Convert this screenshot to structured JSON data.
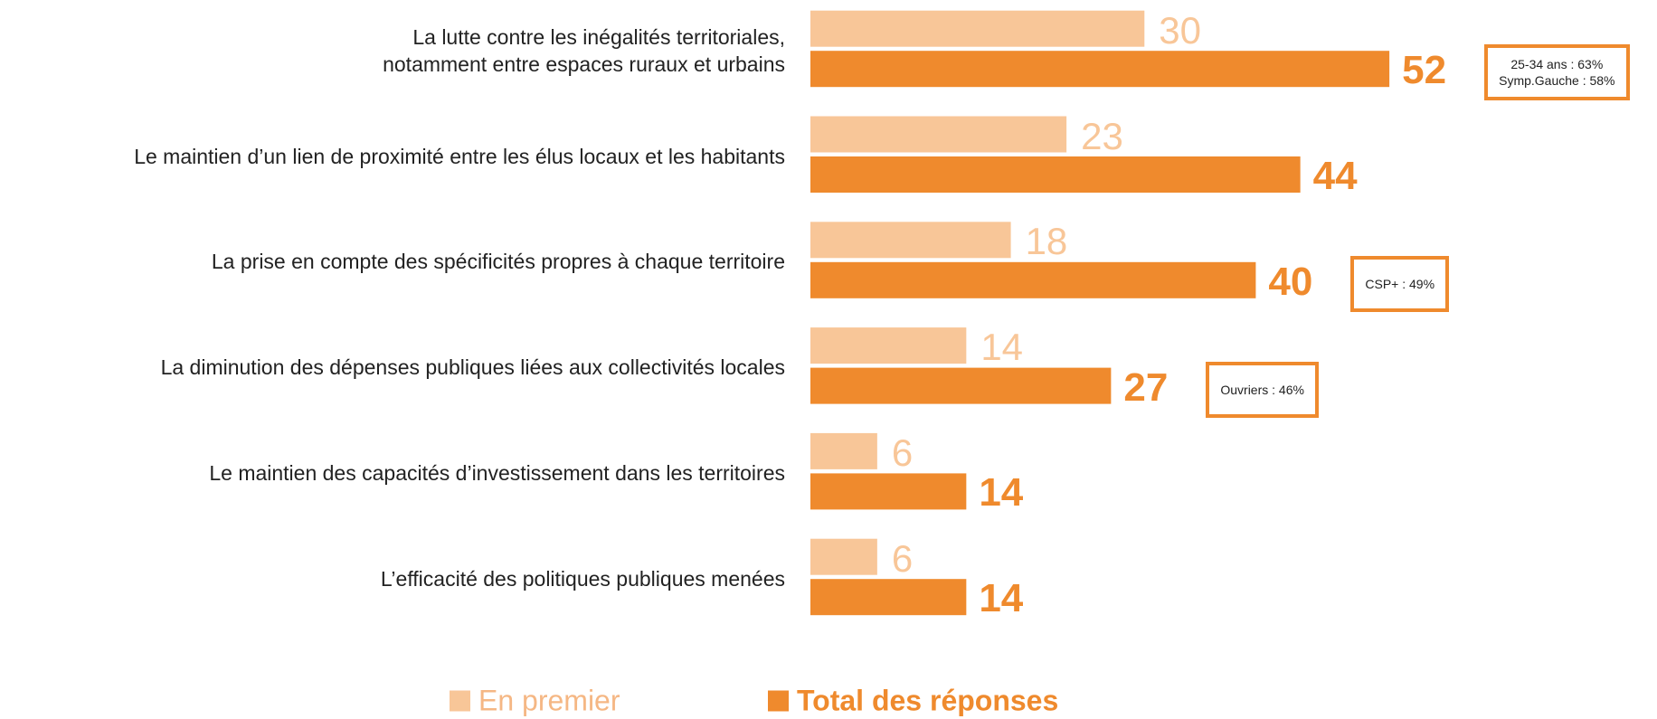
{
  "chart_data": {
    "type": "bar",
    "orientation": "horizontal",
    "categories": [
      "La lutte contre les inégalités territoriales,\nnotamment entre espaces ruraux et urbains",
      "Le maintien d’un lien de proximité entre les élus locaux et les habitants",
      "La prise en compte des spécificités propres à chaque territoire",
      "La diminution des dépenses publiques liées aux collectivités locales",
      "Le maintien des capacités d’investissement dans les territoires",
      "L’efficacité des politiques publiques menées"
    ],
    "series": [
      {
        "name": "En premier",
        "color": "#f8c698",
        "values": [
          30,
          23,
          18,
          14,
          6,
          6
        ]
      },
      {
        "name": "Total des réponses",
        "color": "#ef8a2d",
        "values": [
          52,
          44,
          40,
          27,
          14,
          14
        ]
      }
    ],
    "annotations": [
      [
        "25-34 ans : 63%",
        "Symp.Gauche : 58%"
      ],
      null,
      [
        "CSP+ : 49%"
      ],
      [
        "Ouvriers : 46%"
      ],
      null,
      null
    ],
    "legend": "bottom"
  }
}
